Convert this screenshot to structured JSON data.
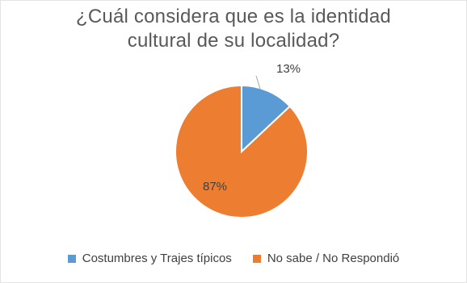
{
  "chart_data": {
    "type": "pie",
    "title_lines": [
      "¿Cuál considera que es la identidad",
      "cultural de su localidad?"
    ],
    "categories": [
      "Costumbres y Trajes típicos",
      "No sabe / No Respondió"
    ],
    "values": [
      13,
      87
    ],
    "data_labels": [
      "13%",
      "87%"
    ],
    "colors": [
      "#5B9BD5",
      "#ED7D31"
    ],
    "legend_position": "bottom"
  }
}
